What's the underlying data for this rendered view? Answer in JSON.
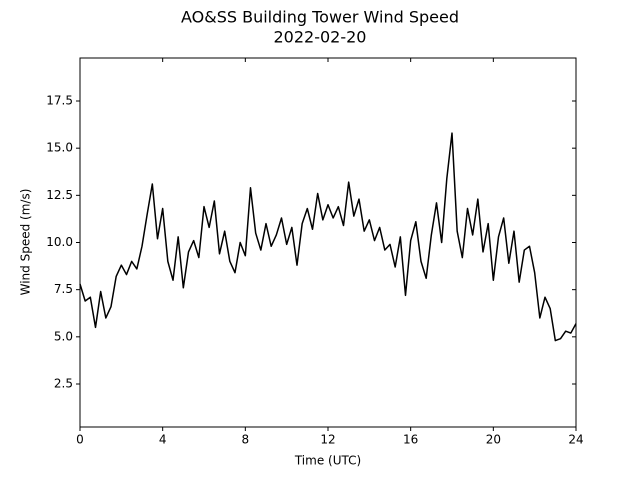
{
  "chart_data": {
    "type": "line",
    "title": "AO&SS Building Tower Wind Speed",
    "subtitle": "2022-02-20",
    "x_label": "Time (UTC)",
    "y_label": "Wind Speed (m/s)",
    "xlim": [
      0,
      24
    ],
    "xticks": [
      0,
      4,
      8,
      12,
      16,
      20,
      24
    ],
    "ylim": [
      0.22,
      19.78
    ],
    "yticks": [
      2.5,
      {
        "value": 5,
        "label": "5.0"
      },
      7.5,
      {
        "value": 10,
        "label": "10.0"
      },
      12.5,
      {
        "value": 15,
        "label": "15.0"
      },
      17.5
    ],
    "grid": false,
    "x": [
      0,
      0.25,
      0.5,
      0.75,
      1,
      1.25,
      1.5,
      1.75,
      2,
      2.25,
      2.5,
      2.75,
      3,
      3.25,
      3.5,
      3.75,
      4,
      4.25,
      4.5,
      4.75,
      5,
      5.25,
      5.5,
      5.75,
      6,
      6.25,
      6.5,
      6.75,
      7,
      7.25,
      7.5,
      7.75,
      8,
      8.25,
      8.5,
      8.75,
      9,
      9.25,
      9.5,
      9.75,
      10,
      10.25,
      10.5,
      10.75,
      11,
      11.25,
      11.5,
      11.75,
      12,
      12.25,
      12.5,
      12.75,
      13,
      13.25,
      13.5,
      13.75,
      14,
      14.25,
      14.5,
      14.75,
      15,
      15.25,
      15.5,
      15.75,
      16,
      16.25,
      16.5,
      16.75,
      17,
      17.25,
      17.5,
      17.75,
      18,
      18.25,
      18.5,
      18.75,
      19,
      19.25,
      19.5,
      19.75,
      20,
      20.25,
      20.5,
      20.75,
      21,
      21.25,
      21.5,
      21.75,
      22,
      22.25,
      22.5,
      22.75,
      23,
      23.25,
      23.5,
      23.75,
      24
    ],
    "series": [
      {
        "name": "Wind Speed",
        "color": "#000000",
        "values": [
          7.8,
          6.9,
          7.1,
          5.5,
          7.4,
          6.0,
          6.6,
          8.2,
          8.8,
          8.3,
          9.0,
          8.6,
          9.8,
          11.5,
          13.1,
          10.2,
          11.8,
          9.0,
          8.0,
          10.3,
          7.6,
          9.5,
          10.1,
          9.2,
          11.9,
          10.8,
          12.2,
          9.4,
          10.6,
          9.0,
          8.4,
          10.0,
          9.3,
          12.9,
          10.5,
          9.6,
          11.0,
          9.8,
          10.4,
          11.3,
          9.9,
          10.8,
          8.8,
          11.0,
          11.8,
          10.7,
          12.6,
          11.2,
          12.0,
          11.3,
          11.9,
          10.9,
          13.2,
          11.4,
          12.3,
          10.6,
          11.2,
          10.1,
          10.8,
          9.6,
          9.9,
          8.7,
          10.3,
          7.2,
          10.1,
          11.1,
          9.0,
          8.1,
          10.4,
          12.1,
          10.0,
          13.4,
          15.8,
          10.6,
          9.2,
          11.8,
          10.4,
          12.3,
          9.5,
          11.0,
          8.0,
          10.3,
          11.3,
          8.9,
          10.6,
          7.9,
          9.6,
          9.8,
          8.4,
          6.0,
          7.1,
          6.5,
          4.8,
          4.9,
          5.3,
          5.2,
          5.7
        ]
      }
    ]
  }
}
